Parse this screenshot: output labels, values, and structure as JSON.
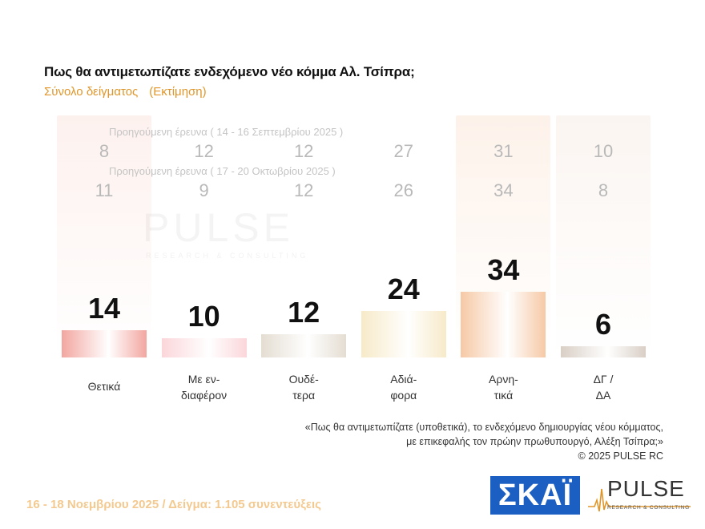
{
  "header": {
    "title": "Πως θα αντιμετωπίζατε ενδεχόμενο νέο κόμμα Αλ. Τσίπρα;",
    "subtitle": "Σύνολο δείγματος",
    "subtitle_note": "(Εκτίμηση)"
  },
  "chart_data": {
    "type": "bar",
    "categories": [
      "Θετικά",
      "Με εν-\nδιαφέρον",
      "Ουδέ-\nτερα",
      "Αδιά-\nφορα",
      "Αρνη-\nτικά",
      "ΔΓ /\nΔΑ"
    ],
    "values": [
      14,
      10,
      12,
      24,
      34,
      6
    ],
    "ylim": [
      0,
      34
    ],
    "grid": false,
    "previous_surveys": [
      {
        "label": "Προηγούμενη έρευνα ( 14 - 16 Σεπτεμβρίου 2025 )",
        "values": [
          8,
          12,
          12,
          27,
          31,
          10
        ]
      },
      {
        "label": "Προηγούμενη έρευνα ( 17 - 20 Οκτωβρίου 2025 )",
        "values": [
          11,
          9,
          12,
          26,
          34,
          8
        ]
      }
    ],
    "colors": [
      "#f2a6a0",
      "#fbd6da",
      "#e4ddd2",
      "#f7eac9",
      "#f6c9a6",
      "#d9cfc6"
    ],
    "column_bg_colors": [
      "#fdf1ee",
      "#ffffff",
      "#ffffff",
      "#ffffff",
      "#fdf2ea",
      "#fbf5f1"
    ]
  },
  "watermark": {
    "text": "PULSE",
    "subtext": "RESEARCH & CONSULTING"
  },
  "note": {
    "line1": "«Πως θα αντιμετωπίζατε (υποθετικά), το ενδεχόμενο δημιουργίας νέου κόμματος,",
    "line2": "με επικεφαλής τον πρώην πρωθυπουργό, Αλέξη Τσίπρα;»",
    "line3": "©  2025  PULSE RC"
  },
  "footer": {
    "text": "16 - 18 Νοεμβρίου 2025  /  Δείγμα:  1.105 συνεντεύξεις"
  },
  "logos": {
    "skai": "ΣΚΑΪ",
    "pulse": "PULSE",
    "pulse_sub": "RESEARCH & CONSULTING"
  }
}
